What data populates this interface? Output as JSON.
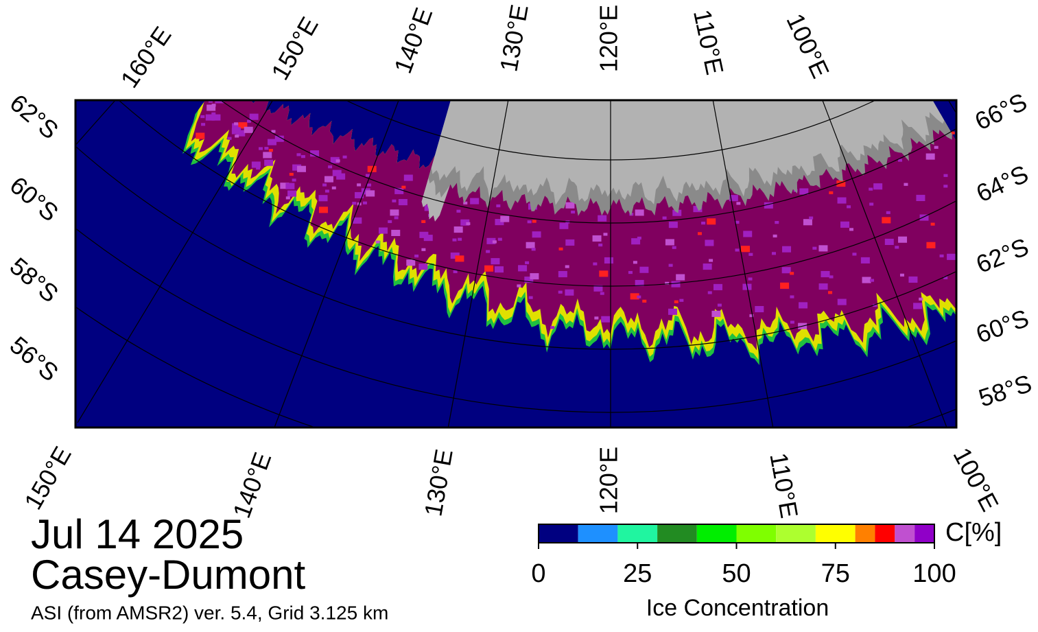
{
  "date": "Jul 14 2025",
  "region": "Casey-Dumont",
  "source": "ASI (from AMSR2) ver. 5.4,  Grid 3.125 km",
  "map": {
    "top_lon_labels": [
      "160°E",
      "150°E",
      "140°E",
      "130°E",
      "120°E",
      "110°E",
      "100°E"
    ],
    "bottom_lon_labels": [
      "150°E",
      "140°E",
      "130°E",
      "120°E",
      "110°E",
      "100°E"
    ],
    "left_lat_labels": [
      "62°S",
      "60°S",
      "58°S",
      "56°S"
    ],
    "right_lat_labels": [
      "66°S",
      "64°S",
      "62°S",
      "60°S",
      "58°S"
    ]
  },
  "colorbar": {
    "bounds": [
      0,
      10,
      20,
      30,
      40,
      50,
      60,
      70,
      80,
      85,
      90,
      95,
      100
    ],
    "colors": [
      "#000080",
      "#1e90ff",
      "#20f5a0",
      "#228b22",
      "#00ee00",
      "#7fff00",
      "#adff2f",
      "#ffff00",
      "#ff8000",
      "#ff0000",
      "#c050d0",
      "#9000c8"
    ],
    "ticks": [
      0,
      25,
      50,
      75,
      100
    ],
    "unit_label": "C[%]",
    "title": "Ice Concentration"
  }
}
